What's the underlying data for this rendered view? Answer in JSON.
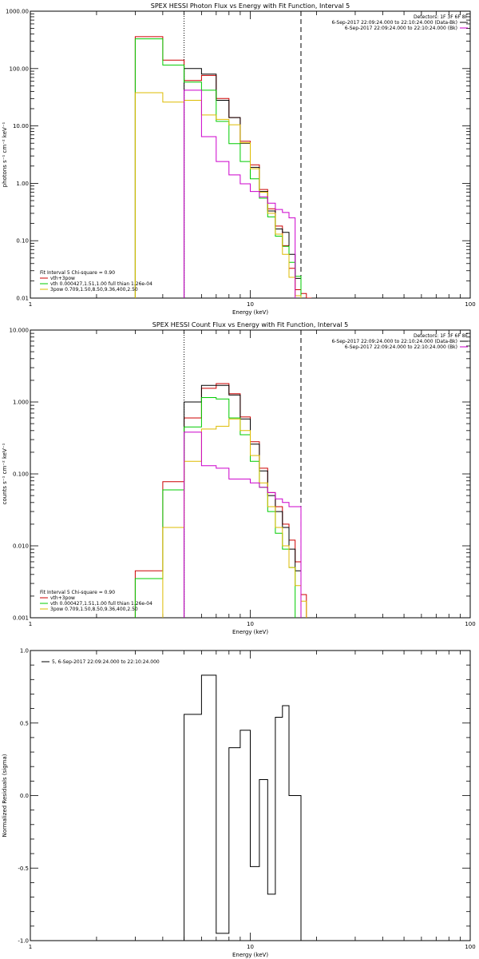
{
  "chart_data": [
    {
      "type": "line",
      "title": "SPEX HESSI Photon Flux vs Energy with Fit Function, Interval 5",
      "xlabel": "Energy (keV)",
      "ylabel": "photons s⁻¹ cm⁻² keV⁻¹",
      "xscale": "log",
      "yscale": "log",
      "xlim": [
        1,
        100
      ],
      "ylim": [
        0.01,
        1000
      ],
      "xticks": [
        "1",
        "10",
        "100"
      ],
      "yticks": [
        "0.01",
        "0.10",
        "1.00",
        "10.00",
        "100.00",
        "1000.00"
      ],
      "vlines": [
        {
          "x": 5,
          "style": "dotted",
          "color": "#000000"
        },
        {
          "x": 17,
          "style": "dashed",
          "color": "#000000"
        }
      ],
      "legend_top": {
        "header": "Detectors: 1F 3F 6F 8F",
        "entries": [
          {
            "text": "6-Sep-2017 22:09:24.000 to 22:10:24.000 (Data-Bk)",
            "color": "#000000"
          },
          {
            "text": "6-Sep-2017 22:09:24.000 to 22:10:24.000 (Bk)",
            "color": "#cc00cc"
          }
        ]
      },
      "legend_bottom": {
        "header": "Fit Interval 5   Chi-square = 0.90",
        "entries": [
          {
            "text": "vth+3pow",
            "color": "#cc0000"
          },
          {
            "text": "vth 0.000427,1.51,1.00  full thian 1.26e-04",
            "color": "#00cc00"
          },
          {
            "text": "3pow 0.709,1.50,8.50,9.36,400,2.50",
            "color": "#ddbb00"
          }
        ]
      },
      "edges": [
        3.0,
        4.0,
        5.0,
        6.0,
        7.0,
        8.0,
        9.0,
        10.0,
        11.0,
        12.0,
        13.0,
        14.0,
        15.0,
        16.0,
        17.0,
        18.0,
        19.0
      ],
      "series": [
        {
          "color": "#cc0000",
          "values": [
            360,
            140,
            62,
            76,
            30,
            14,
            5.4,
            2.1,
            0.78,
            0.36,
            0.18,
            0.082,
            0.033,
            0.014,
            0.012,
            0.006
          ]
        },
        {
          "color": "#000000",
          "values": [
            null,
            null,
            100,
            80,
            28,
            14,
            5.0,
            1.9,
            0.72,
            0.33,
            0.16,
            0.14,
            0.058,
            0.022,
            null,
            null
          ]
        },
        {
          "color": "#00cc00",
          "values": [
            330,
            115,
            58,
            42,
            12,
            4.9,
            2.4,
            1.2,
            0.55,
            0.26,
            0.12,
            0.08,
            0.042,
            0.024,
            null,
            null
          ]
        },
        {
          "color": "#ddbb00",
          "values": [
            38,
            26,
            28,
            15.5,
            13,
            10.5,
            5.1,
            1.8,
            0.7,
            0.3,
            0.13,
            0.058,
            0.023,
            0.011,
            null,
            null
          ]
        },
        {
          "color": "#cc00cc",
          "values": [
            null,
            null,
            42,
            6.5,
            2.4,
            1.4,
            0.98,
            0.72,
            0.58,
            0.45,
            0.35,
            0.31,
            0.25,
            null,
            null,
            null
          ]
        }
      ]
    },
    {
      "type": "line",
      "title": "SPEX HESSI Count Flux vs Energy with Fit Function, Interval 5",
      "xlabel": "Energy (keV)",
      "ylabel": "counts s⁻¹ cm⁻² keV⁻¹",
      "xscale": "log",
      "yscale": "log",
      "xlim": [
        1,
        100
      ],
      "ylim": [
        0.001,
        10
      ],
      "xticks": [
        "1",
        "10",
        "100"
      ],
      "yticks": [
        "0.001",
        "0.010",
        "0.100",
        "1.000",
        "10.000"
      ],
      "vlines": [
        {
          "x": 5,
          "style": "dotted",
          "color": "#000000"
        },
        {
          "x": 17,
          "style": "dashed",
          "color": "#000000"
        }
      ],
      "legend_top": {
        "header": "Detectors: 1F 3F 6F 8F",
        "entries": [
          {
            "text": "6-Sep-2017 22:09:24.000 to 22:10:24.000 (Data-Bk)",
            "color": "#000000"
          },
          {
            "text": "6-Sep-2017 22:09:24.000 to 22:10:24.000 (Bk)",
            "color": "#cc00cc"
          }
        ]
      },
      "legend_bottom": {
        "header": "Fit Interval 5   Chi-square = 0.90",
        "entries": [
          {
            "text": "vth+3pow",
            "color": "#cc0000"
          },
          {
            "text": "vth 0.000427,1.51,1.00  full thian 1.26e-04",
            "color": "#00cc00"
          },
          {
            "text": "3pow 0.709,1.50,8.50,9.36,400,2.50",
            "color": "#ddbb00"
          }
        ]
      },
      "edges": [
        3.0,
        4.0,
        5.0,
        6.0,
        7.0,
        8.0,
        9.0,
        10.0,
        11.0,
        12.0,
        13.0,
        14.0,
        15.0,
        16.0,
        17.0,
        18.0,
        19.0
      ],
      "series": [
        {
          "color": "#cc0000",
          "values": [
            0.0045,
            0.078,
            0.6,
            1.55,
            1.8,
            1.3,
            0.62,
            0.28,
            0.12,
            0.055,
            0.035,
            0.02,
            0.012,
            0.006,
            0.0021,
            null
          ]
        },
        {
          "color": "#000000",
          "values": [
            null,
            null,
            1.0,
            1.7,
            1.7,
            1.25,
            0.58,
            0.26,
            0.11,
            0.05,
            0.03,
            0.018,
            0.009,
            0.0045,
            null,
            null
          ]
        },
        {
          "color": "#00cc00",
          "values": [
            0.0035,
            0.06,
            0.45,
            1.15,
            1.1,
            0.6,
            0.35,
            0.15,
            0.065,
            0.03,
            0.015,
            0.009,
            0.005,
            null,
            null,
            null
          ]
        },
        {
          "color": "#ddbb00",
          "values": [
            null,
            0.018,
            0.15,
            0.42,
            0.46,
            0.58,
            0.4,
            0.18,
            0.075,
            0.035,
            0.018,
            0.01,
            0.005,
            0.0028,
            0.0017,
            null
          ]
        },
        {
          "color": "#cc00cc",
          "values": [
            null,
            null,
            0.38,
            0.13,
            0.12,
            0.085,
            0.085,
            0.075,
            0.065,
            0.055,
            0.045,
            0.04,
            0.035,
            0.035,
            null,
            null
          ]
        }
      ]
    },
    {
      "type": "line",
      "title": "",
      "xlabel": "Energy (keV)",
      "ylabel": "Normalized Residuals (sigma)",
      "xscale": "log",
      "yscale": "linear",
      "xlim": [
        1,
        100
      ],
      "ylim": [
        -1.0,
        1.0
      ],
      "xticks": [
        "1",
        "10",
        "100"
      ],
      "yticks": [
        "-1.0",
        "-0.5",
        "0.0",
        "0.5",
        "1.0"
      ],
      "legend_top": {
        "entries": [
          {
            "text": "5,  6-Sep-2017 22:09:24.000 to 22:10:24.000",
            "color": "#000000"
          }
        ]
      },
      "edges": [
        5.0,
        6.0,
        7.0,
        8.0,
        9.0,
        10.0,
        11.0,
        12.0,
        13.0,
        14.0,
        15.0,
        16.0,
        17.0
      ],
      "series": [
        {
          "color": "#000000",
          "values": [
            0.56,
            0.83,
            -0.95,
            0.33,
            0.45,
            -0.49,
            0.11,
            -0.68,
            0.54,
            0.62,
            0.0,
            0.0
          ]
        }
      ]
    }
  ]
}
